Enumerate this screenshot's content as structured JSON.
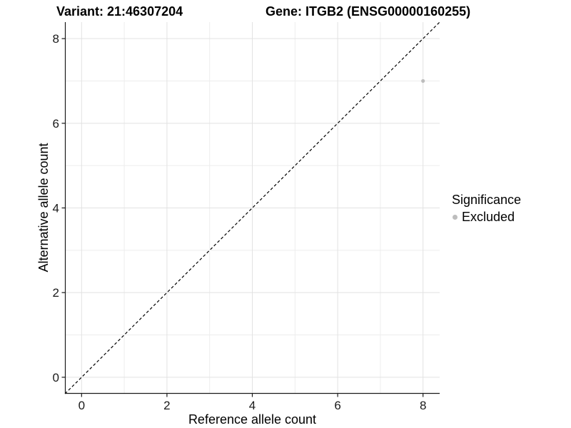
{
  "titles": {
    "variant": "Variant: 21:46307204",
    "gene": "Gene: ITGB2 (ENSG00000160255)"
  },
  "chart_data": {
    "type": "scatter",
    "xlabel": "Reference allele count",
    "ylabel": "Alternative allele count",
    "xlim": [
      -0.39,
      8.39
    ],
    "ylim": [
      -0.39,
      8.39
    ],
    "xticks": [
      0,
      2,
      4,
      6,
      8
    ],
    "yticks": [
      0,
      2,
      4,
      6,
      8
    ],
    "xminor": [
      1,
      3,
      5,
      7
    ],
    "yminor": [
      1,
      3,
      5,
      7
    ],
    "grid": "major and minor gridlines on white background",
    "identity_line": {
      "style": "dashed",
      "color": "#000000",
      "from": [
        -0.39,
        -0.39
      ],
      "to": [
        8.39,
        8.39
      ]
    },
    "series": [
      {
        "name": "Excluded",
        "color": "#bdbdbd",
        "points": [
          [
            8,
            7
          ]
        ]
      }
    ],
    "legend": {
      "title": "Significance",
      "position": "right",
      "items": [
        {
          "label": "Excluded",
          "color": "#bdbdbd"
        }
      ]
    },
    "colors": {
      "grid_major": "#e2e2e2",
      "grid_minor": "#ededed",
      "axis_line": "#1a1a1a",
      "tick_label": "#1a1a1a",
      "text": "#000000",
      "background": "#ffffff"
    }
  }
}
